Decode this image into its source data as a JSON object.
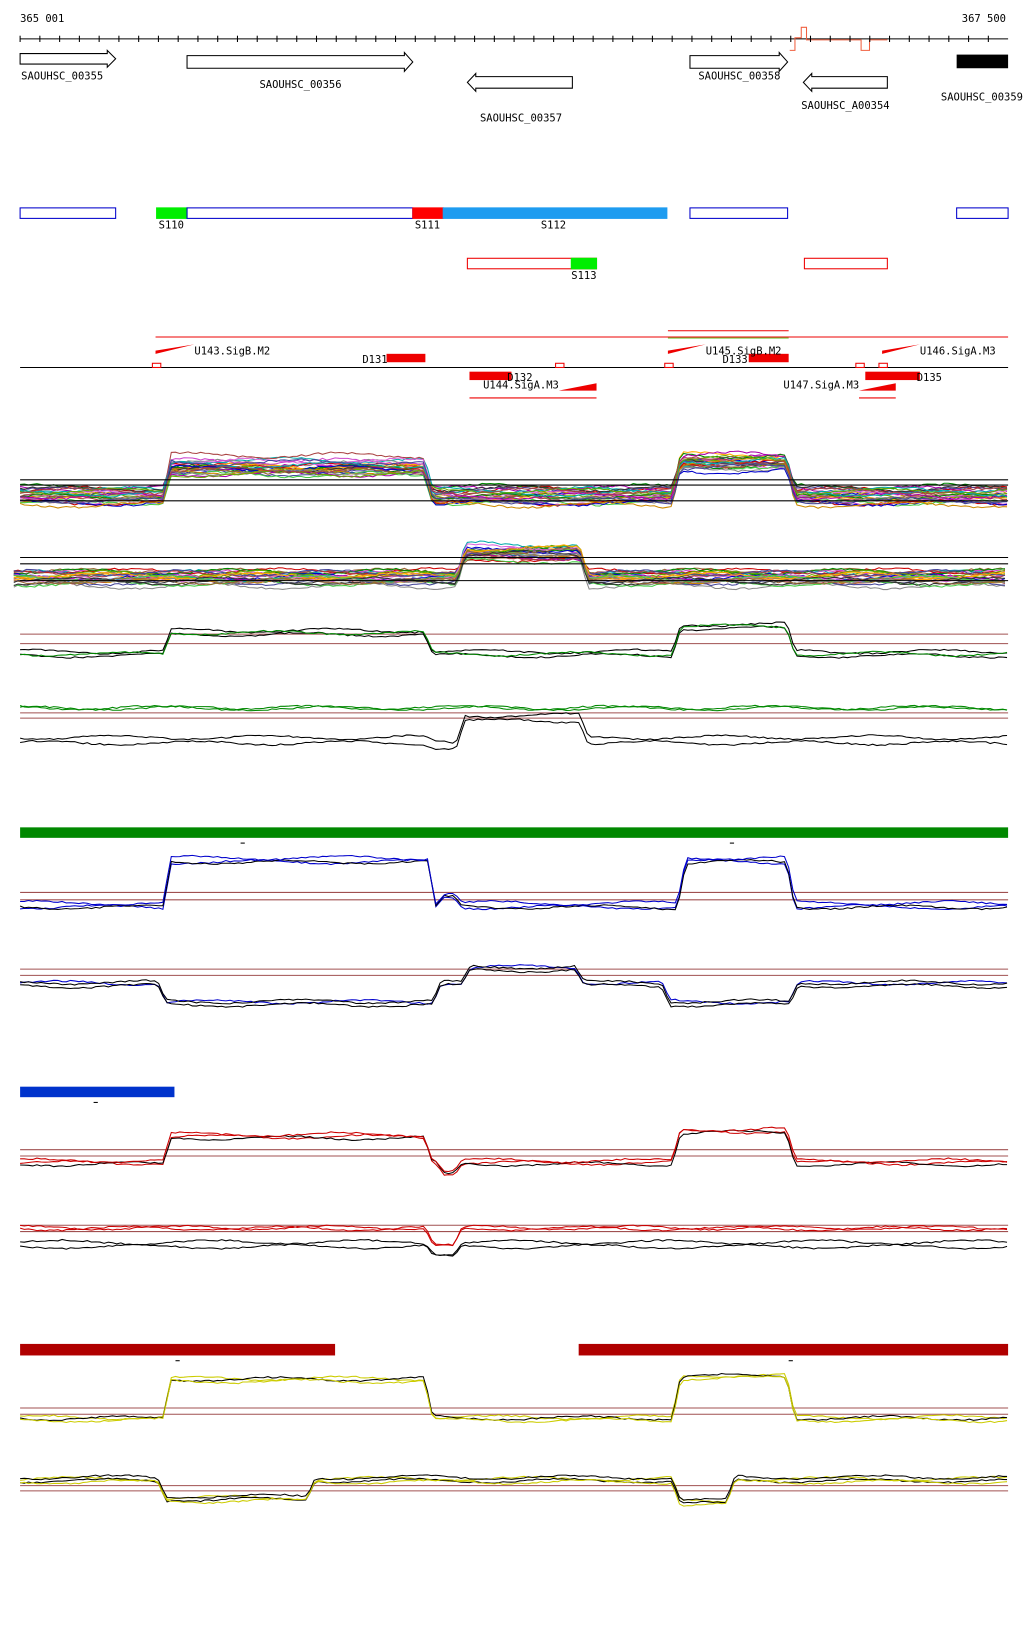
{
  "ruler": {
    "start": "365 001",
    "end": "367 500"
  },
  "genes": [
    {
      "label": "SAOUHSC_00355"
    },
    {
      "label": "SAOUHSC_00356"
    },
    {
      "label": "SAOUHSC_00357"
    },
    {
      "label": "SAOUHSC_00358"
    },
    {
      "label": "SAOUHSC_A00354"
    },
    {
      "label": "SAOUHSC_00359"
    }
  ],
  "segments": [
    {
      "label": "S110"
    },
    {
      "label": "S111"
    },
    {
      "label": "S112"
    },
    {
      "label": "S113"
    }
  ],
  "promoters": [
    {
      "label": "U143.SigB.M2"
    },
    {
      "label": "D131"
    },
    {
      "label": "D132"
    },
    {
      "label": "U144.SigA.M3"
    },
    {
      "label": "U145.SigB.M2"
    },
    {
      "label": "D133"
    },
    {
      "label": "U146.SigA.M3"
    },
    {
      "label": "U147.SigA.M3"
    },
    {
      "label": "D135"
    }
  ]
}
